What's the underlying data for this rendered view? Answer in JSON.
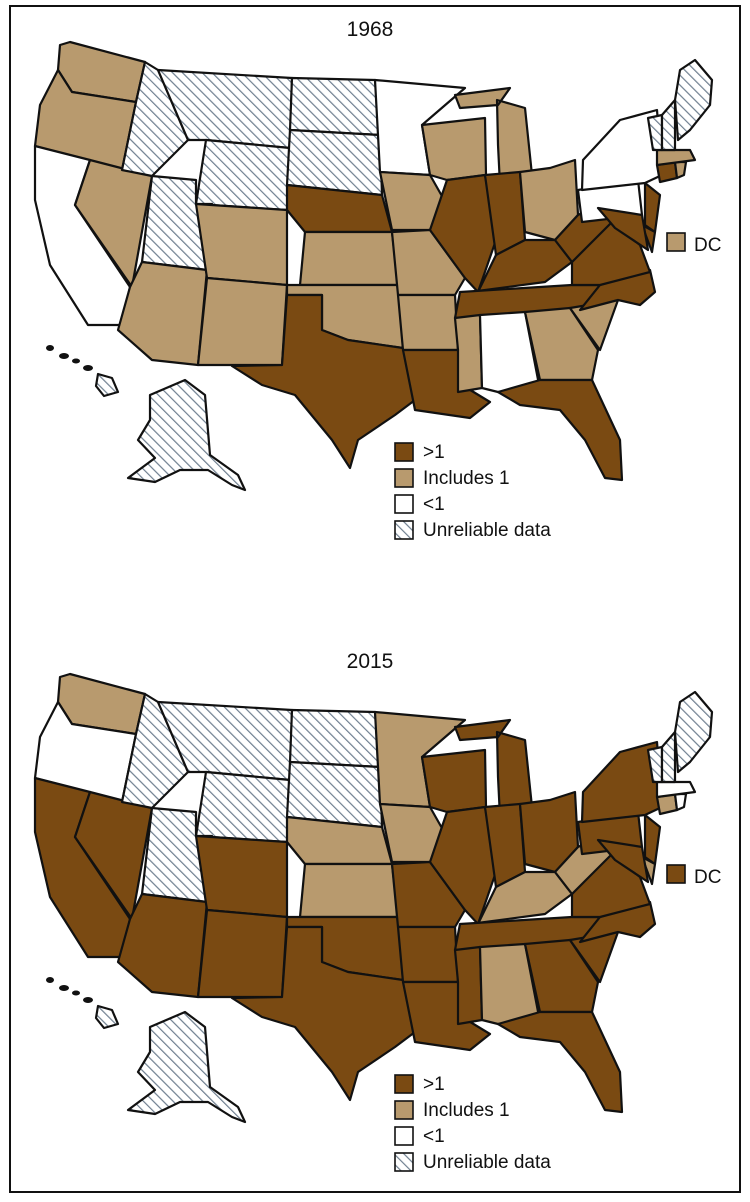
{
  "colors": {
    "gt1": "#7a4a12",
    "includes1": "#b89a6e",
    "lt1": "#ffffff",
    "unreliable_stroke": "#6f7f90"
  },
  "legend": [
    {
      "category": "gt1",
      "label": ">1"
    },
    {
      "category": "includes1",
      "label": "Includes 1"
    },
    {
      "category": "lt1",
      "label": "<1"
    },
    {
      "category": "unreliable",
      "label": "Unreliable data"
    }
  ],
  "dc_label": "DC",
  "maps": [
    {
      "year": "1968",
      "dc": "includes1",
      "states": {
        "WA": "includes1",
        "OR": "includes1",
        "CA": "lt1",
        "NV": "includes1",
        "ID": "unreliable",
        "MT": "unreliable",
        "WY": "unreliable",
        "UT": "unreliable",
        "AZ": "includes1",
        "CO": "includes1",
        "NM": "includes1",
        "ND": "unreliable",
        "SD": "unreliable",
        "NE": "gt1",
        "KS": "includes1",
        "OK": "includes1",
        "TX": "gt1",
        "MN": "lt1",
        "IA": "includes1",
        "MO": "includes1",
        "AR": "includes1",
        "LA": "gt1",
        "WI": "includes1",
        "IL": "gt1",
        "MI": "includes1",
        "IN": "gt1",
        "OH": "includes1",
        "KY": "gt1",
        "TN": "gt1",
        "MS": "includes1",
        "AL": "lt1",
        "GA": "includes1",
        "FL": "gt1",
        "SC": "includes1",
        "NC": "gt1",
        "VA": "gt1",
        "WV": "gt1",
        "PA": "lt1",
        "NY": "lt1",
        "NJ": "gt1",
        "DE": "gt1",
        "MD": "gt1",
        "CT": "gt1",
        "RI": "includes1",
        "MA": "includes1",
        "VT": "unreliable",
        "NH": "unreliable",
        "ME": "unreliable",
        "AK": "unreliable",
        "HI": "unreliable"
      }
    },
    {
      "year": "2015",
      "dc": "gt1",
      "states": {
        "WA": "includes1",
        "OR": "lt1",
        "CA": "gt1",
        "NV": "gt1",
        "ID": "unreliable",
        "MT": "unreliable",
        "WY": "unreliable",
        "UT": "unreliable",
        "AZ": "gt1",
        "CO": "gt1",
        "NM": "gt1",
        "ND": "unreliable",
        "SD": "unreliable",
        "NE": "includes1",
        "KS": "includes1",
        "OK": "gt1",
        "TX": "gt1",
        "MN": "includes1",
        "IA": "includes1",
        "MO": "gt1",
        "AR": "gt1",
        "LA": "gt1",
        "WI": "gt1",
        "IL": "gt1",
        "MI": "gt1",
        "IN": "gt1",
        "OH": "gt1",
        "KY": "includes1",
        "TN": "gt1",
        "MS": "gt1",
        "AL": "includes1",
        "GA": "gt1",
        "FL": "gt1",
        "SC": "gt1",
        "NC": "gt1",
        "VA": "gt1",
        "WV": "includes1",
        "PA": "gt1",
        "NY": "gt1",
        "NJ": "gt1",
        "DE": "includes1",
        "MD": "gt1",
        "CT": "includes1",
        "RI": "lt1",
        "MA": "lt1",
        "VT": "unreliable",
        "NH": "unreliable",
        "ME": "unreliable",
        "AK": "unreliable",
        "HI": "unreliable"
      }
    }
  ]
}
